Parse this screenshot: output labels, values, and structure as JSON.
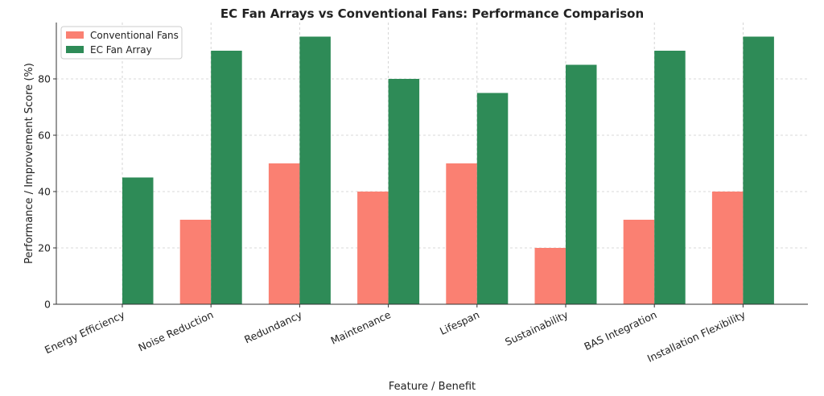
{
  "chart_data": {
    "type": "bar",
    "title": "EC Fan Arrays vs Conventional Fans: Performance Comparison",
    "xlabel": "Feature / Benefit",
    "ylabel": "Performance / Improvement Score (%)",
    "categories": [
      "Energy Efficiency",
      "Noise Reduction",
      "Redundancy",
      "Maintenance",
      "Lifespan",
      "Sustainability",
      "BAS Integration",
      "Installation Flexibility"
    ],
    "series": [
      {
        "name": "Conventional Fans",
        "color": "#fa8072",
        "values": [
          0,
          30,
          50,
          40,
          50,
          20,
          30,
          40
        ]
      },
      {
        "name": "EC Fan Array",
        "color": "#2e8b57",
        "values": [
          45,
          90,
          95,
          80,
          75,
          85,
          90,
          95
        ]
      }
    ],
    "ylim": [
      0,
      100
    ],
    "yticks": [
      0,
      20,
      40,
      60,
      80
    ],
    "grid": true,
    "legend_position": "top-left"
  }
}
